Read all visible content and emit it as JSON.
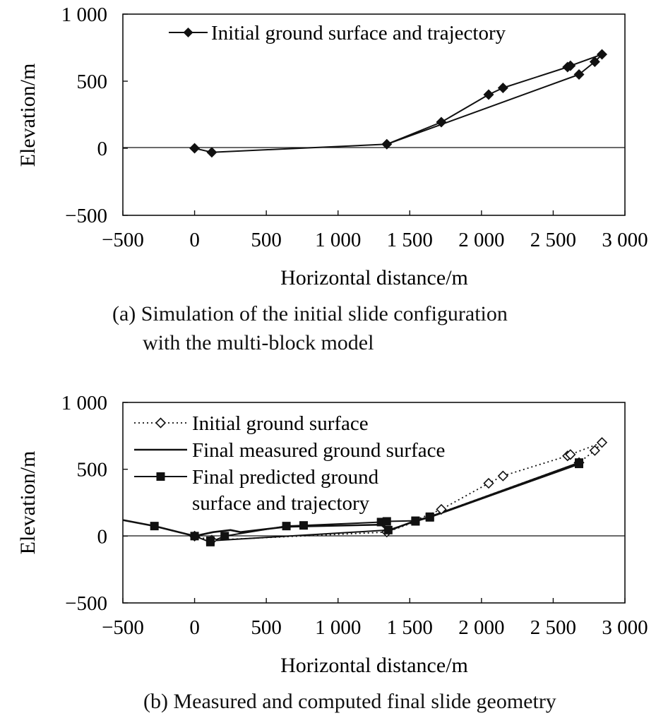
{
  "chart_data": [
    {
      "type": "line",
      "xlabel": "Horizontal distance/m",
      "ylabel": "Elevation/m",
      "xlim": [
        -500,
        3000
      ],
      "ylim": [
        -500,
        1000
      ],
      "xticks": [
        "−500",
        "0",
        "500",
        "1 000",
        "1 500",
        "2 000",
        "2 500",
        "3 000"
      ],
      "yticks": [
        "−500",
        "0",
        "500",
        "1 000"
      ],
      "legend_position": "top-left",
      "grid": false,
      "series": [
        {
          "name": "Initial ground surface and trajectory",
          "marker": "filled-diamond",
          "line": "solid",
          "points": [
            [
              0,
              0
            ],
            [
              120,
              -30
            ],
            [
              1340,
              30
            ],
            [
              1720,
              195
            ],
            [
              2050,
              400
            ],
            [
              2150,
              450
            ],
            [
              2600,
              605
            ],
            [
              2620,
              615
            ],
            [
              2840,
              700
            ],
            [
              2790,
              645
            ],
            [
              2680,
              550
            ],
            [
              1340,
              30
            ]
          ]
        }
      ],
      "caption_lines": [
        "(a) Simulation of the initial slide configuration",
        "with the multi-block model"
      ]
    },
    {
      "type": "line",
      "xlabel": "Horizontal distance/m",
      "ylabel": "Elevation/m",
      "xlim": [
        -500,
        3000
      ],
      "ylim": [
        -500,
        1000
      ],
      "xticks": [
        "−500",
        "0",
        "500",
        "1 000",
        "1 500",
        "2 000",
        "2 500",
        "3 000"
      ],
      "yticks": [
        "−500",
        "0",
        "500",
        "1 000"
      ],
      "legend_position": "top-left",
      "grid": false,
      "series": [
        {
          "name": "Initial ground surface",
          "marker": "hollow-diamond",
          "line": "dotted",
          "points": [
            [
              0,
              0
            ],
            [
              120,
              -30
            ],
            [
              1340,
              30
            ],
            [
              1720,
              200
            ],
            [
              2050,
              395
            ],
            [
              2150,
              450
            ],
            [
              2600,
              600
            ],
            [
              2620,
              610
            ],
            [
              2840,
              700
            ],
            [
              2790,
              640
            ],
            [
              2680,
              550
            ],
            [
              1340,
              30
            ]
          ]
        },
        {
          "name": "Final measured ground surface",
          "marker": "none",
          "line": "solid",
          "points": [
            [
              -500,
              120
            ],
            [
              -280,
              75
            ],
            [
              0,
              0
            ],
            [
              130,
              30
            ],
            [
              250,
              45
            ],
            [
              320,
              30
            ],
            [
              640,
              70
            ],
            [
              1300,
              85
            ],
            [
              1350,
              40
            ],
            [
              1540,
              115
            ],
            [
              1630,
              140
            ],
            [
              2680,
              540
            ]
          ]
        },
        {
          "name": "Final predicted ground surface and trajectory",
          "name_lines": [
            "Final predicted ground",
            "surface and trajectory"
          ],
          "marker": "filled-square",
          "line": "solid",
          "points": [
            [
              -280,
              75
            ],
            [
              0,
              0
            ],
            [
              110,
              -45
            ],
            [
              210,
              0
            ],
            [
              640,
              75
            ],
            [
              760,
              80
            ],
            [
              1300,
              105
            ],
            [
              1340,
              110
            ],
            [
              1540,
              115
            ],
            [
              1640,
              145
            ],
            [
              2680,
              550
            ],
            [
              2680,
              540
            ],
            [
              1640,
              140
            ],
            [
              1540,
              110
            ],
            [
              1350,
              45
            ],
            [
              110,
              -35
            ]
          ]
        }
      ],
      "caption_lines": [
        "(b) Measured and computed final slide geometry"
      ]
    }
  ]
}
